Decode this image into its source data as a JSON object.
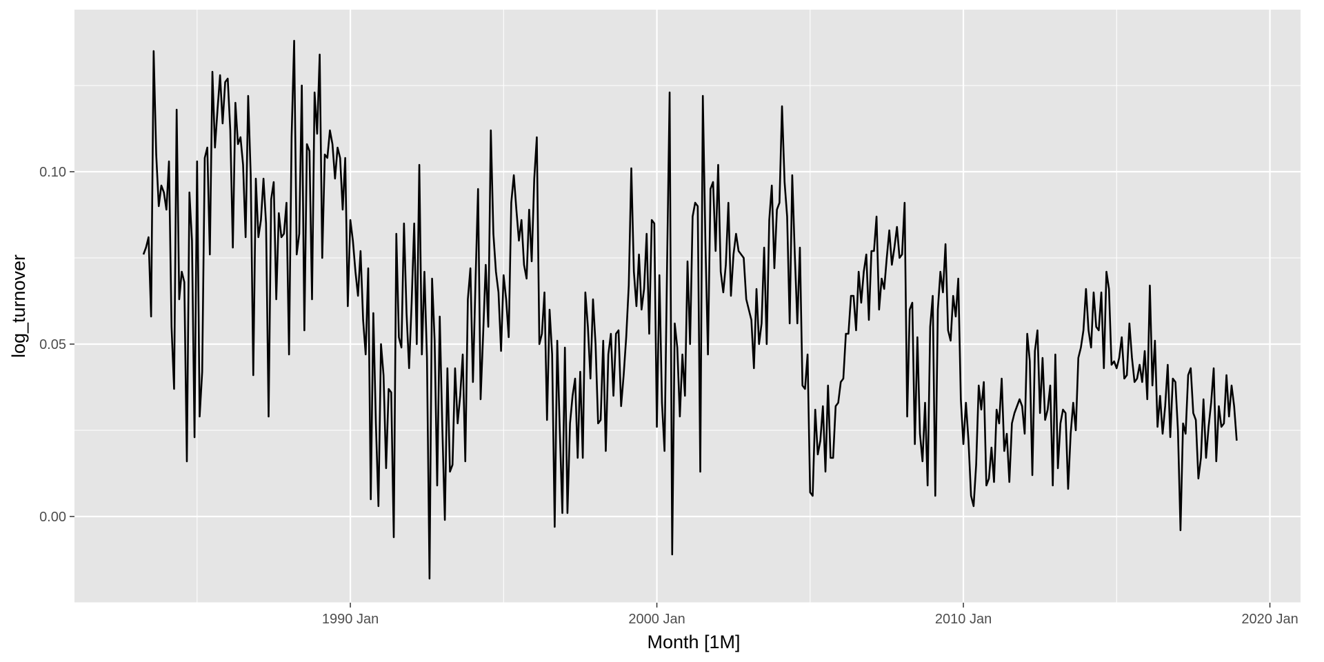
{
  "chart_data": {
    "type": "line",
    "title": "",
    "xlabel": "Month [1M]",
    "ylabel": "log_turnover",
    "grid": true,
    "legend": "none",
    "xlim": [
      "1981 Jan",
      "2021 Jan"
    ],
    "ylim": [
      -0.025,
      0.147
    ],
    "x_major_ticks": [
      {
        "value": "1990 Jan",
        "label": "1990 Jan"
      },
      {
        "value": "2000 Jan",
        "label": "2000 Jan"
      },
      {
        "value": "2010 Jan",
        "label": "2010 Jan"
      },
      {
        "value": "2020 Jan",
        "label": "2020 Jan"
      }
    ],
    "x_minor_ticks": [
      "1985 Jan",
      "1995 Jan",
      "2005 Jan",
      "2015 Jan"
    ],
    "y_major_ticks": [
      {
        "value": 0.0,
        "label": "0.00"
      },
      {
        "value": 0.05,
        "label": "0.05"
      },
      {
        "value": 0.1,
        "label": "0.10"
      }
    ],
    "y_minor_ticks": [
      -0.025,
      0.025,
      0.075,
      0.125
    ],
    "colors": {
      "line": "#000000",
      "panel": "#e5e5e5",
      "grid": "#ffffff"
    },
    "series": [
      {
        "start": "1983 Apr",
        "frequency": "monthly",
        "values": [
          0.076,
          0.078,
          0.081,
          0.058,
          0.135,
          0.105,
          0.09,
          0.096,
          0.094,
          0.089,
          0.103,
          0.055,
          0.037,
          0.118,
          0.063,
          0.071,
          0.068,
          0.016,
          0.094,
          0.08,
          0.023,
          0.103,
          0.029,
          0.042,
          0.104,
          0.107,
          0.076,
          0.129,
          0.107,
          0.118,
          0.128,
          0.114,
          0.126,
          0.127,
          0.112,
          0.078,
          0.12,
          0.108,
          0.11,
          0.102,
          0.081,
          0.122,
          0.099,
          0.041,
          0.098,
          0.081,
          0.086,
          0.098,
          0.085,
          0.029,
          0.092,
          0.097,
          0.063,
          0.088,
          0.081,
          0.082,
          0.091,
          0.047,
          0.11,
          0.138,
          0.076,
          0.082,
          0.125,
          0.054,
          0.108,
          0.106,
          0.063,
          0.123,
          0.111,
          0.134,
          0.075,
          0.105,
          0.104,
          0.112,
          0.108,
          0.098,
          0.107,
          0.104,
          0.089,
          0.104,
          0.061,
          0.086,
          0.08,
          0.071,
          0.064,
          0.077,
          0.057,
          0.047,
          0.072,
          0.005,
          0.059,
          0.027,
          0.003,
          0.05,
          0.041,
          0.014,
          0.037,
          0.036,
          -0.006,
          0.082,
          0.052,
          0.049,
          0.085,
          0.059,
          0.043,
          0.062,
          0.085,
          0.05,
          0.102,
          0.047,
          0.071,
          0.046,
          -0.018,
          0.069,
          0.051,
          0.009,
          0.058,
          0.026,
          -0.001,
          0.043,
          0.013,
          0.015,
          0.043,
          0.027,
          0.035,
          0.047,
          0.016,
          0.063,
          0.072,
          0.039,
          0.068,
          0.095,
          0.034,
          0.053,
          0.073,
          0.055,
          0.112,
          0.082,
          0.071,
          0.065,
          0.048,
          0.07,
          0.063,
          0.052,
          0.091,
          0.099,
          0.089,
          0.08,
          0.086,
          0.073,
          0.069,
          0.089,
          0.074,
          0.098,
          0.11,
          0.05,
          0.053,
          0.065,
          0.028,
          0.06,
          0.047,
          -0.003,
          0.051,
          0.025,
          0.001,
          0.049,
          0.001,
          0.027,
          0.035,
          0.04,
          0.017,
          0.042,
          0.017,
          0.065,
          0.055,
          0.04,
          0.063,
          0.05,
          0.027,
          0.028,
          0.051,
          0.019,
          0.047,
          0.053,
          0.035,
          0.053,
          0.054,
          0.032,
          0.041,
          0.052,
          0.067,
          0.101,
          0.071,
          0.061,
          0.076,
          0.06,
          0.066,
          0.082,
          0.053,
          0.086,
          0.085,
          0.026,
          0.07,
          0.033,
          0.019,
          0.073,
          0.123,
          -0.011,
          0.056,
          0.049,
          0.029,
          0.047,
          0.035,
          0.074,
          0.05,
          0.087,
          0.091,
          0.09,
          0.013,
          0.122,
          0.08,
          0.047,
          0.095,
          0.097,
          0.077,
          0.102,
          0.071,
          0.065,
          0.073,
          0.091,
          0.064,
          0.076,
          0.082,
          0.077,
          0.076,
          0.075,
          0.063,
          0.06,
          0.057,
          0.043,
          0.066,
          0.05,
          0.056,
          0.078,
          0.05,
          0.086,
          0.096,
          0.072,
          0.089,
          0.091,
          0.119,
          0.097,
          0.087,
          0.056,
          0.099,
          0.076,
          0.056,
          0.078,
          0.038,
          0.037,
          0.047,
          0.007,
          0.006,
          0.031,
          0.018,
          0.022,
          0.032,
          0.013,
          0.038,
          0.017,
          0.017,
          0.032,
          0.033,
          0.039,
          0.04,
          0.053,
          0.053,
          0.064,
          0.064,
          0.054,
          0.071,
          0.062,
          0.071,
          0.076,
          0.057,
          0.077,
          0.077,
          0.087,
          0.06,
          0.069,
          0.066,
          0.075,
          0.083,
          0.073,
          0.078,
          0.084,
          0.075,
          0.076,
          0.091,
          0.029,
          0.06,
          0.062,
          0.021,
          0.052,
          0.024,
          0.016,
          0.033,
          0.009,
          0.055,
          0.064,
          0.006,
          0.06,
          0.071,
          0.065,
          0.079,
          0.054,
          0.051,
          0.064,
          0.058,
          0.069,
          0.034,
          0.021,
          0.033,
          0.022,
          0.006,
          0.003,
          0.015,
          0.038,
          0.031,
          0.039,
          0.009,
          0.011,
          0.02,
          0.01,
          0.031,
          0.027,
          0.04,
          0.019,
          0.024,
          0.01,
          0.027,
          0.03,
          0.032,
          0.034,
          0.032,
          0.024,
          0.053,
          0.045,
          0.012,
          0.048,
          0.054,
          0.03,
          0.046,
          0.028,
          0.031,
          0.038,
          0.009,
          0.047,
          0.014,
          0.027,
          0.031,
          0.03,
          0.008,
          0.024,
          0.033,
          0.025,
          0.046,
          0.049,
          0.054,
          0.066,
          0.054,
          0.049,
          0.065,
          0.055,
          0.054,
          0.065,
          0.043,
          0.071,
          0.066,
          0.044,
          0.045,
          0.043,
          0.046,
          0.052,
          0.04,
          0.041,
          0.056,
          0.046,
          0.039,
          0.04,
          0.044,
          0.039,
          0.048,
          0.034,
          0.067,
          0.038,
          0.051,
          0.026,
          0.035,
          0.024,
          0.032,
          0.044,
          0.023,
          0.04,
          0.039,
          0.025,
          -0.004,
          0.027,
          0.024,
          0.041,
          0.043,
          0.03,
          0.028,
          0.011,
          0.017,
          0.034,
          0.017,
          0.026,
          0.033,
          0.043,
          0.016,
          0.032,
          0.026,
          0.027,
          0.041,
          0.029,
          0.038,
          0.032,
          0.022
        ]
      }
    ]
  }
}
